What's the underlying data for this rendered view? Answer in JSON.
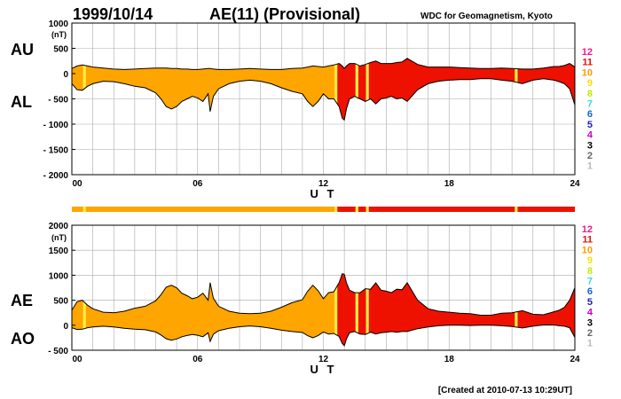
{
  "header": {
    "date": "1999/10/14",
    "title": "AE(11) (Provisional)",
    "source": "WDC for Geomagnetism, Kyoto"
  },
  "footer": {
    "created": "[Created at 2010-07-13 10:29UT]"
  },
  "colors": {
    "fill_low": "#ffa500",
    "fill_high": "#ee1100",
    "fill_highlight": "#ffee44",
    "line": "#000000",
    "grid": "#aaaaaa"
  },
  "legend": {
    "items": [
      {
        "label": "12",
        "color": "#ee1a8c"
      },
      {
        "label": "11",
        "color": "#dd1111"
      },
      {
        "label": "10",
        "color": "#ff9900"
      },
      {
        "label": "9",
        "color": "#ffdd00"
      },
      {
        "label": "8",
        "color": "#bbee00"
      },
      {
        "label": "7",
        "color": "#33dddd"
      },
      {
        "label": "6",
        "color": "#1166dd"
      },
      {
        "label": "5",
        "color": "#2222aa"
      },
      {
        "label": "4",
        "color": "#cc00cc"
      },
      {
        "label": "3",
        "color": "#000000"
      },
      {
        "label": "2",
        "color": "#666666"
      },
      {
        "label": "1",
        "color": "#bbbbbb"
      }
    ]
  },
  "chart_data": [
    {
      "type": "area",
      "panel": "AU/AL",
      "upper_label": "AU",
      "lower_label": "AL",
      "yunit": "(nT)",
      "xlabel": "U T",
      "xlim": [
        0,
        24
      ],
      "ylim": [
        -2000,
        1000
      ],
      "yticks": [
        1000,
        500,
        0,
        -500,
        -1000,
        -1500,
        -2000
      ],
      "ytick_labels": [
        "1000",
        "500",
        "0",
        "- 500",
        "- 1000",
        "- 1500",
        "- 2000"
      ],
      "xticks": [
        0,
        6,
        12,
        18,
        24
      ],
      "xtick_labels": [
        "00",
        "06",
        "12",
        "18",
        "24"
      ],
      "x": [
        0,
        0.25,
        0.5,
        0.75,
        1,
        1.5,
        2,
        2.5,
        3,
        3.5,
        4,
        4.25,
        4.5,
        4.75,
        5,
        5.25,
        5.5,
        5.75,
        6,
        6.25,
        6.5,
        6.6,
        6.75,
        7,
        7.5,
        8,
        8.5,
        9,
        9.5,
        10,
        10.5,
        11,
        11.25,
        11.5,
        11.75,
        12,
        12.25,
        12.5,
        12.75,
        12.9,
        13,
        13.1,
        13.25,
        13.5,
        13.75,
        14,
        14.25,
        14.5,
        14.75,
        15,
        15.25,
        15.5,
        15.75,
        16,
        16.5,
        17,
        17.5,
        18,
        18.5,
        19,
        19.5,
        20,
        20.5,
        21,
        21.5,
        22,
        22.5,
        23,
        23.25,
        23.5,
        23.75,
        24
      ],
      "series": [
        {
          "name": "AU",
          "values": [
            100,
            150,
            170,
            150,
            130,
            110,
            90,
            80,
            90,
            100,
            110,
            110,
            110,
            100,
            100,
            90,
            90,
            80,
            80,
            90,
            100,
            100,
            90,
            80,
            80,
            90,
            100,
            90,
            80,
            80,
            100,
            110,
            130,
            150,
            140,
            130,
            150,
            170,
            200,
            150,
            100,
            150,
            200,
            200,
            150,
            180,
            220,
            250,
            200,
            200,
            200,
            220,
            230,
            300,
            180,
            130,
            130,
            130,
            120,
            110,
            100,
            100,
            110,
            100,
            90,
            90,
            110,
            140,
            140,
            160,
            200,
            130
          ]
        },
        {
          "name": "AL",
          "values": [
            -200,
            -320,
            -330,
            -250,
            -200,
            -150,
            -160,
            -200,
            -250,
            -280,
            -380,
            -500,
            -650,
            -700,
            -650,
            -550,
            -500,
            -450,
            -480,
            -550,
            -400,
            -750,
            -450,
            -300,
            -200,
            -150,
            -130,
            -150,
            -200,
            -280,
            -350,
            -400,
            -550,
            -650,
            -550,
            -400,
            -500,
            -500,
            -650,
            -880,
            -920,
            -700,
            -500,
            -450,
            -500,
            -550,
            -500,
            -600,
            -500,
            -480,
            -450,
            -500,
            -480,
            -550,
            -320,
            -200,
            -150,
            -130,
            -120,
            -120,
            -100,
            -100,
            -130,
            -150,
            -200,
            -130,
            -100,
            -130,
            -160,
            -200,
            -300,
            -620
          ]
        }
      ],
      "highlights": [
        0.6,
        12.6,
        13.6,
        14.1,
        21.2
      ]
    },
    {
      "type": "area",
      "panel": "AE/AO",
      "upper_label": "AE",
      "lower_label": "AO",
      "yunit": "(nT)",
      "xlabel": "U T",
      "xlim": [
        0,
        24
      ],
      "ylim": [
        -500,
        2000
      ],
      "yticks": [
        2000,
        1500,
        1000,
        500,
        0,
        -500
      ],
      "ytick_labels": [
        "2000",
        "1500",
        "1000",
        "500",
        "0",
        "- 500"
      ],
      "xticks": [
        0,
        6,
        12,
        18,
        24
      ],
      "xtick_labels": [
        "00",
        "06",
        "12",
        "18",
        "24"
      ],
      "x": [
        0,
        0.25,
        0.5,
        0.75,
        1,
        1.5,
        2,
        2.5,
        3,
        3.5,
        4,
        4.25,
        4.5,
        4.75,
        5,
        5.25,
        5.5,
        5.75,
        6,
        6.25,
        6.5,
        6.6,
        6.75,
        7,
        7.5,
        8,
        8.5,
        9,
        9.5,
        10,
        10.5,
        11,
        11.25,
        11.5,
        11.75,
        12,
        12.25,
        12.5,
        12.75,
        12.9,
        13,
        13.1,
        13.25,
        13.5,
        13.75,
        14,
        14.25,
        14.5,
        14.75,
        15,
        15.25,
        15.5,
        15.75,
        16,
        16.5,
        17,
        17.5,
        18,
        18.5,
        19,
        19.5,
        20,
        20.5,
        21,
        21.5,
        22,
        22.5,
        23,
        23.25,
        23.5,
        23.75,
        24
      ],
      "series": [
        {
          "name": "AE",
          "values": [
            300,
            470,
            500,
            400,
            330,
            260,
            250,
            280,
            340,
            380,
            490,
            610,
            760,
            800,
            750,
            640,
            590,
            530,
            560,
            640,
            500,
            850,
            540,
            380,
            280,
            240,
            230,
            240,
            280,
            360,
            450,
            510,
            680,
            800,
            690,
            530,
            650,
            670,
            850,
            1030,
            1020,
            850,
            700,
            650,
            650,
            730,
            720,
            850,
            700,
            680,
            650,
            720,
            710,
            850,
            500,
            330,
            280,
            260,
            240,
            230,
            200,
            200,
            240,
            250,
            290,
            220,
            210,
            270,
            300,
            360,
            500,
            750
          ]
        },
        {
          "name": "AO",
          "values": [
            -50,
            -85,
            -80,
            -50,
            -35,
            -20,
            -35,
            -60,
            -80,
            -90,
            -135,
            -195,
            -270,
            -300,
            -275,
            -230,
            -205,
            -185,
            -200,
            -230,
            -150,
            -325,
            -180,
            -110,
            -60,
            -30,
            -15,
            -30,
            -60,
            -100,
            -125,
            -145,
            -210,
            -250,
            -205,
            -135,
            -175,
            -165,
            -225,
            -365,
            -410,
            -275,
            -150,
            -125,
            -175,
            -185,
            -140,
            -175,
            -150,
            -140,
            -125,
            -140,
            -125,
            -125,
            -70,
            -35,
            -10,
            0,
            0,
            -5,
            0,
            0,
            -10,
            -25,
            -55,
            -20,
            5,
            5,
            -10,
            -20,
            -50,
            -245
          ]
        }
      ],
      "highlights": [
        0.6,
        12.6,
        13.6,
        14.1,
        21.2
      ]
    }
  ]
}
